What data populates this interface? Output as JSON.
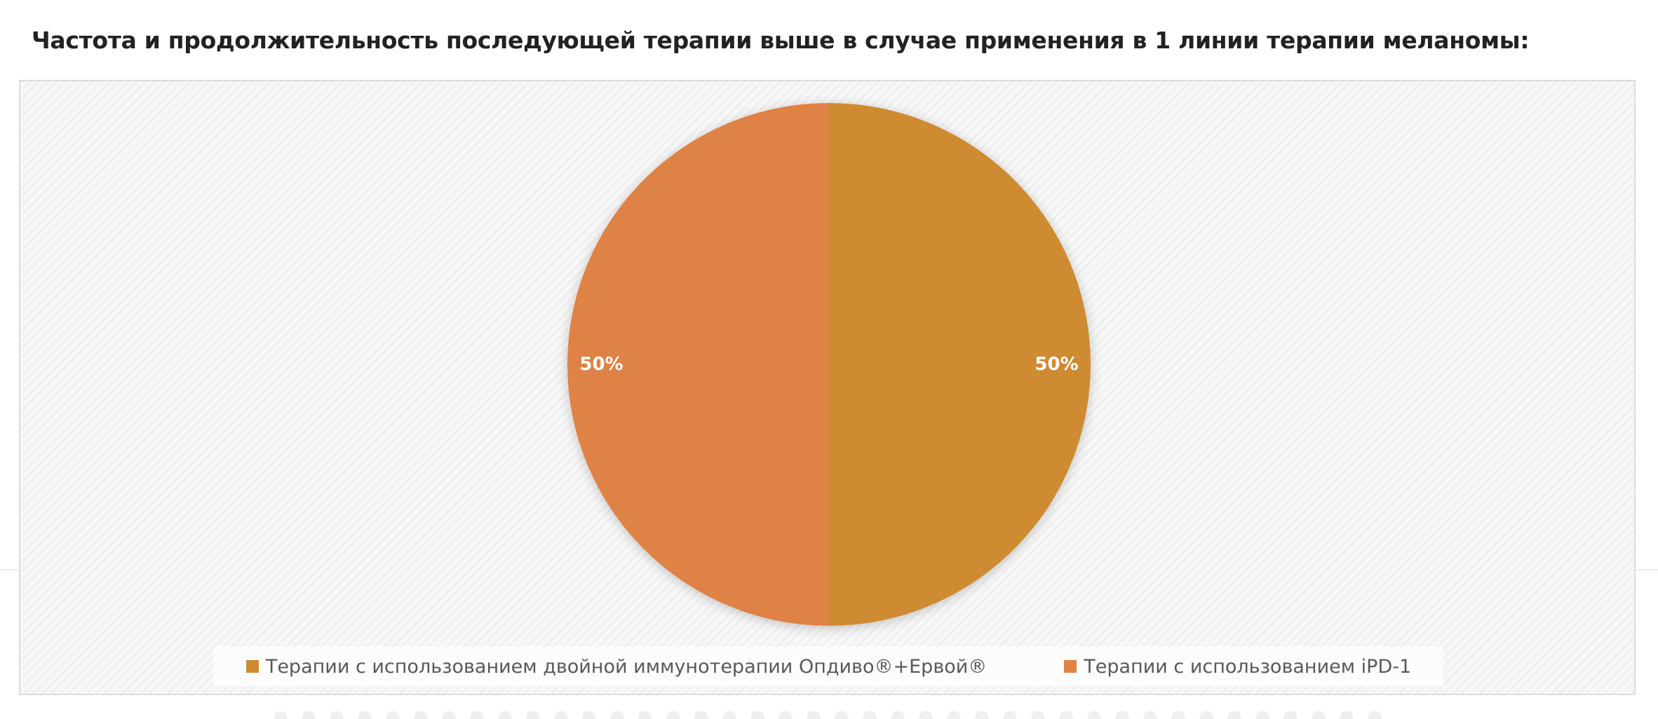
{
  "page": {
    "heading": "Частота и продолжительность последующей терапии выше в случае применения в 1 линии терапии меланомы:"
  },
  "chart_data": {
    "type": "pie",
    "title": "",
    "series": [
      {
        "name": "Терапии с использованием двойной иммунотерапии Опдиво®+Ервой®",
        "value": 50,
        "label": "50%",
        "color": "#CE8B30"
      },
      {
        "name": "Терапии с использованием iPD-1",
        "value": 50,
        "label": "50%",
        "color": "#DF8244"
      }
    ],
    "legend_position": "bottom",
    "start_angle_deg": 0,
    "direction": "clockwise"
  }
}
